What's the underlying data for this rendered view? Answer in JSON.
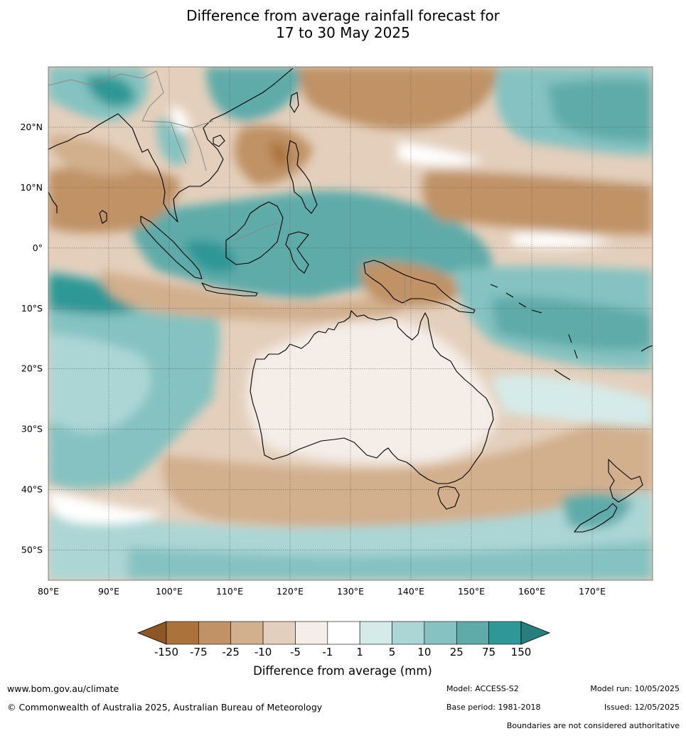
{
  "title": {
    "line1": "Difference from average rainfall forecast for",
    "line2": "17 to 30 May 2025"
  },
  "map": {
    "lon_range": [
      80,
      180
    ],
    "lat_range": [
      -55,
      30
    ],
    "lon_ticks": [
      {
        "value": 80,
        "label": "80°E"
      },
      {
        "value": 90,
        "label": "90°E"
      },
      {
        "value": 100,
        "label": "100°E"
      },
      {
        "value": 110,
        "label": "110°E"
      },
      {
        "value": 120,
        "label": "120°E"
      },
      {
        "value": 130,
        "label": "130°E"
      },
      {
        "value": 140,
        "label": "140°E"
      },
      {
        "value": 150,
        "label": "150°E"
      },
      {
        "value": 160,
        "label": "160°E"
      },
      {
        "value": 170,
        "label": "170°E"
      }
    ],
    "lat_ticks": [
      {
        "value": 20,
        "label": "20°N"
      },
      {
        "value": 10,
        "label": "10°N"
      },
      {
        "value": 0,
        "label": "0°"
      },
      {
        "value": -10,
        "label": "10°S"
      },
      {
        "value": -20,
        "label": "20°S"
      },
      {
        "value": -30,
        "label": "30°S"
      },
      {
        "value": -40,
        "label": "40°S"
      },
      {
        "value": -50,
        "label": "50°S"
      }
    ]
  },
  "colorbar": {
    "title": "Difference from average (mm)",
    "boundaries": [
      "-150",
      "-75",
      "-25",
      "-10",
      "-5",
      "-1",
      "1",
      "5",
      "10",
      "25",
      "75",
      "150"
    ],
    "colors": [
      "#8c5628",
      "#ab733b",
      "#c09266",
      "#d2af8d",
      "#e4cfbc",
      "#f4ede8",
      "#ffffff",
      "#d5ebe9",
      "#acd6d5",
      "#85c2c1",
      "#5eabaa",
      "#2e9896",
      "#287e7c"
    ]
  },
  "footer": {
    "website": "www.bom.gov.au/climate",
    "copyright": "© Commonwealth of Australia 2025, Australian Bureau of Meteorology",
    "model": "Model: ACCESS-S2",
    "base_period": "Base period: 1981-2018",
    "model_run": "Model run: 10/05/2025",
    "issued": "Issued: 12/05/2025",
    "disclaimer": "Boundaries are not considered authoritative"
  }
}
